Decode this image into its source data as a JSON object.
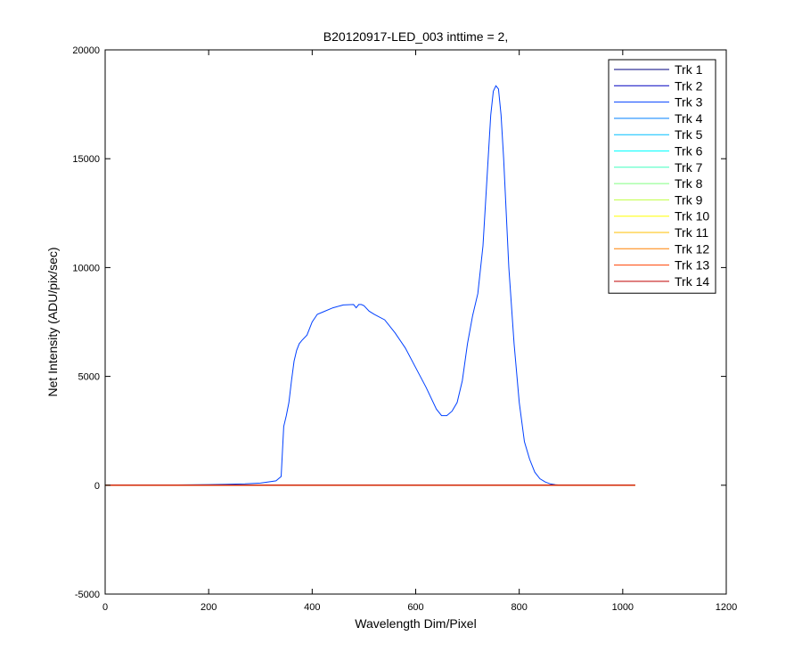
{
  "figure": {
    "background": "#ffffff",
    "axes_background": "#ffffff"
  },
  "chart_data": {
    "type": "line",
    "title": "B20120917-LED_003 inttime = 2,",
    "xlabel": "Wavelength Dim/Pixel",
    "ylabel": "Net Intensity (ADU/pix/sec)",
    "xlim": [
      0,
      1200
    ],
    "ylim": [
      -5000,
      20000
    ],
    "xticks": [
      0,
      200,
      400,
      600,
      800,
      1000,
      1200
    ],
    "yticks": [
      -5000,
      0,
      5000,
      10000,
      15000,
      20000
    ],
    "xtick_labels": [
      "0",
      "200",
      "400",
      "600",
      "800",
      "1000",
      "1200"
    ],
    "ytick_labels": [
      "-5000",
      "0",
      "5000",
      "10000",
      "15000",
      "20000"
    ],
    "grid": false,
    "legend_position": "top-right",
    "series": [
      {
        "name": "Trk 1",
        "color": "#00007f",
        "x": [
          1,
          1024
        ],
        "y": [
          0,
          0
        ]
      },
      {
        "name": "Trk 2",
        "color": "#0000bf",
        "x": [
          1,
          1024
        ],
        "y": [
          0,
          0
        ]
      },
      {
        "name": "Trk 3",
        "color": "#0040ff",
        "x": [
          1,
          100,
          200,
          270,
          300,
          330,
          340,
          345,
          350,
          355,
          360,
          365,
          370,
          375,
          380,
          390,
          400,
          410,
          420,
          440,
          460,
          480,
          485,
          490,
          495,
          500,
          510,
          520,
          540,
          560,
          580,
          600,
          620,
          640,
          650,
          660,
          670,
          680,
          690,
          700,
          710,
          720,
          730,
          740,
          745,
          750,
          755,
          760,
          765,
          770,
          775,
          780,
          790,
          800,
          810,
          820,
          830,
          840,
          850,
          860,
          870,
          880,
          890,
          1024
        ],
        "y": [
          0,
          0,
          30,
          60,
          100,
          200,
          400,
          2700,
          3200,
          3800,
          4800,
          5700,
          6200,
          6500,
          6650,
          6900,
          7500,
          7850,
          7950,
          8150,
          8280,
          8300,
          8150,
          8300,
          8300,
          8250,
          8000,
          7850,
          7600,
          7000,
          6300,
          5400,
          4500,
          3500,
          3200,
          3200,
          3400,
          3800,
          4800,
          6500,
          7800,
          8800,
          11000,
          15000,
          17000,
          18100,
          18350,
          18200,
          17000,
          15000,
          12500,
          10000,
          6500,
          3800,
          2000,
          1200,
          600,
          300,
          150,
          60,
          20,
          5,
          0,
          0
        ]
      },
      {
        "name": "Trk 4",
        "color": "#0080ff",
        "x": [
          1,
          1024
        ],
        "y": [
          0,
          0
        ]
      },
      {
        "name": "Trk 5",
        "color": "#00bfff",
        "x": [
          1,
          1024
        ],
        "y": [
          0,
          0
        ]
      },
      {
        "name": "Trk 6",
        "color": "#00ffff",
        "x": [
          1,
          1024
        ],
        "y": [
          0,
          0
        ]
      },
      {
        "name": "Trk 7",
        "color": "#40ffbf",
        "x": [
          1,
          1024
        ],
        "y": [
          0,
          0
        ]
      },
      {
        "name": "Trk 8",
        "color": "#80ff80",
        "x": [
          1,
          1024
        ],
        "y": [
          0,
          0
        ]
      },
      {
        "name": "Trk 9",
        "color": "#bfff40",
        "x": [
          1,
          1024
        ],
        "y": [
          0,
          0
        ]
      },
      {
        "name": "Trk 10",
        "color": "#ffff00",
        "x": [
          1,
          1024
        ],
        "y": [
          0,
          0
        ]
      },
      {
        "name": "Trk 11",
        "color": "#ffbf00",
        "x": [
          1,
          1024
        ],
        "y": [
          0,
          0
        ]
      },
      {
        "name": "Trk 12",
        "color": "#ff8000",
        "x": [
          1,
          1024
        ],
        "y": [
          0,
          0
        ]
      },
      {
        "name": "Trk 13",
        "color": "#ff4000",
        "x": [
          1,
          1024
        ],
        "y": [
          0,
          0
        ]
      },
      {
        "name": "Trk 14",
        "color": "#bf0000",
        "x": [
          1,
          1024
        ],
        "y": [
          0,
          0
        ]
      }
    ]
  }
}
